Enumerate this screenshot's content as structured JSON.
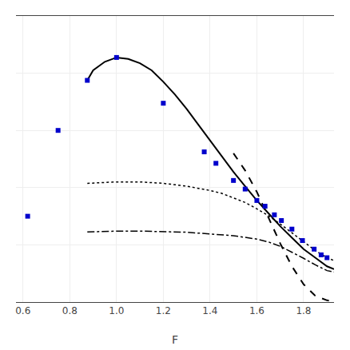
{
  "chart_data": {
    "type": "line",
    "xlabel": "F",
    "xlim": [
      0.57,
      1.93
    ],
    "ylim": [
      0.0,
      1.0
    ],
    "xticks": [
      0.6,
      0.8,
      {
        "value": 1.0,
        "label": "1.0"
      },
      1.2,
      1.4,
      1.6,
      1.8
    ],
    "yticks": [
      0.0,
      0.2,
      0.4,
      0.6,
      0.8,
      1.0
    ],
    "tick_labels": "x",
    "grid": true,
    "series": [
      {
        "type": "line",
        "line_style": "solid",
        "color": "#000000",
        "x": [
          0.875,
          0.9,
          0.95,
          1.0,
          1.05,
          1.1,
          1.15,
          1.2,
          1.25,
          1.3,
          1.35,
          1.4,
          1.45,
          1.5,
          1.55,
          1.6,
          1.65,
          1.7,
          1.75,
          1.8,
          1.85,
          1.9,
          1.93
        ],
        "values": [
          0.775,
          0.81,
          0.84,
          0.855,
          0.85,
          0.835,
          0.81,
          0.77,
          0.725,
          0.675,
          0.62,
          0.565,
          0.51,
          0.455,
          0.405,
          0.355,
          0.31,
          0.265,
          0.225,
          0.185,
          0.155,
          0.125,
          0.115
        ]
      },
      {
        "type": "line",
        "line_style": "dotted",
        "color": "#000000",
        "x": [
          0.875,
          1.0,
          1.1,
          1.2,
          1.3,
          1.4,
          1.45,
          1.5,
          1.55,
          1.6,
          1.65,
          1.7,
          1.75,
          1.8,
          1.85,
          1.9,
          1.93
        ],
        "values": [
          0.415,
          0.42,
          0.42,
          0.415,
          0.405,
          0.39,
          0.38,
          0.365,
          0.348,
          0.326,
          0.302,
          0.273,
          0.242,
          0.21,
          0.18,
          0.155,
          0.145
        ]
      },
      {
        "type": "line",
        "line_style": "dashdot",
        "color": "#000000",
        "x": [
          0.875,
          1.0,
          1.1,
          1.2,
          1.3,
          1.4,
          1.5,
          1.6,
          1.65,
          1.7,
          1.75,
          1.8,
          1.85,
          1.9,
          1.93
        ],
        "values": [
          0.245,
          0.248,
          0.248,
          0.247,
          0.244,
          0.238,
          0.232,
          0.22,
          0.21,
          0.195,
          0.175,
          0.153,
          0.13,
          0.11,
          0.105
        ]
      },
      {
        "type": "line",
        "line_style": "dashed",
        "color": "#000000",
        "x": [
          1.5,
          1.55,
          1.6,
          1.65,
          1.7,
          1.75,
          1.8,
          1.85,
          1.9,
          1.93
        ],
        "values": [
          0.52,
          0.46,
          0.385,
          0.295,
          0.205,
          0.125,
          0.062,
          0.022,
          0.006,
          0.003
        ]
      },
      {
        "type": "scatter",
        "marker": "square",
        "color": "#0000cc",
        "x": [
          0.62,
          0.75,
          0.875,
          1.0,
          1.2,
          1.375,
          1.425,
          1.5,
          1.55,
          1.6,
          1.635,
          1.675,
          1.705,
          1.75,
          1.795,
          1.845,
          1.875,
          1.9
        ],
        "values": [
          0.3,
          0.6,
          0.775,
          0.855,
          0.695,
          0.525,
          0.485,
          0.425,
          0.395,
          0.355,
          0.335,
          0.305,
          0.285,
          0.255,
          0.215,
          0.185,
          0.165,
          0.155
        ]
      }
    ]
  }
}
